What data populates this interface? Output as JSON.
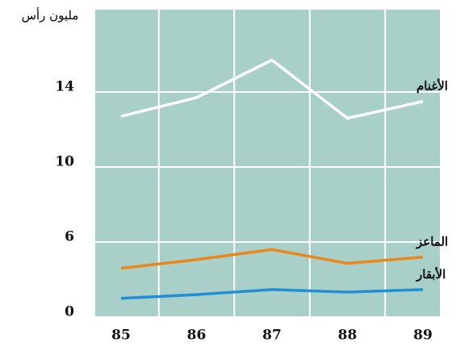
{
  "chart_data": {
    "type": "line",
    "ylabel": "مليون رأس",
    "categories": [
      "85",
      "86",
      "87",
      "88",
      "89"
    ],
    "series": [
      {
        "name": "الأغنام",
        "color": "#ffffff",
        "values": [
          12.7,
          13.7,
          15.7,
          12.6,
          13.5
        ]
      },
      {
        "name": "الماعز",
        "color": "#e8871e",
        "values": [
          3.9,
          4.6,
          5.4,
          4.3,
          4.8
        ]
      },
      {
        "name": "الأبقار",
        "color": "#1f8fd6",
        "values": [
          1.5,
          1.8,
          2.2,
          2.0,
          2.2
        ]
      }
    ],
    "ylim": [
      0,
      18
    ],
    "yticks": [
      0,
      6,
      10,
      14
    ],
    "grid": true,
    "background": "#a9cfc9"
  }
}
